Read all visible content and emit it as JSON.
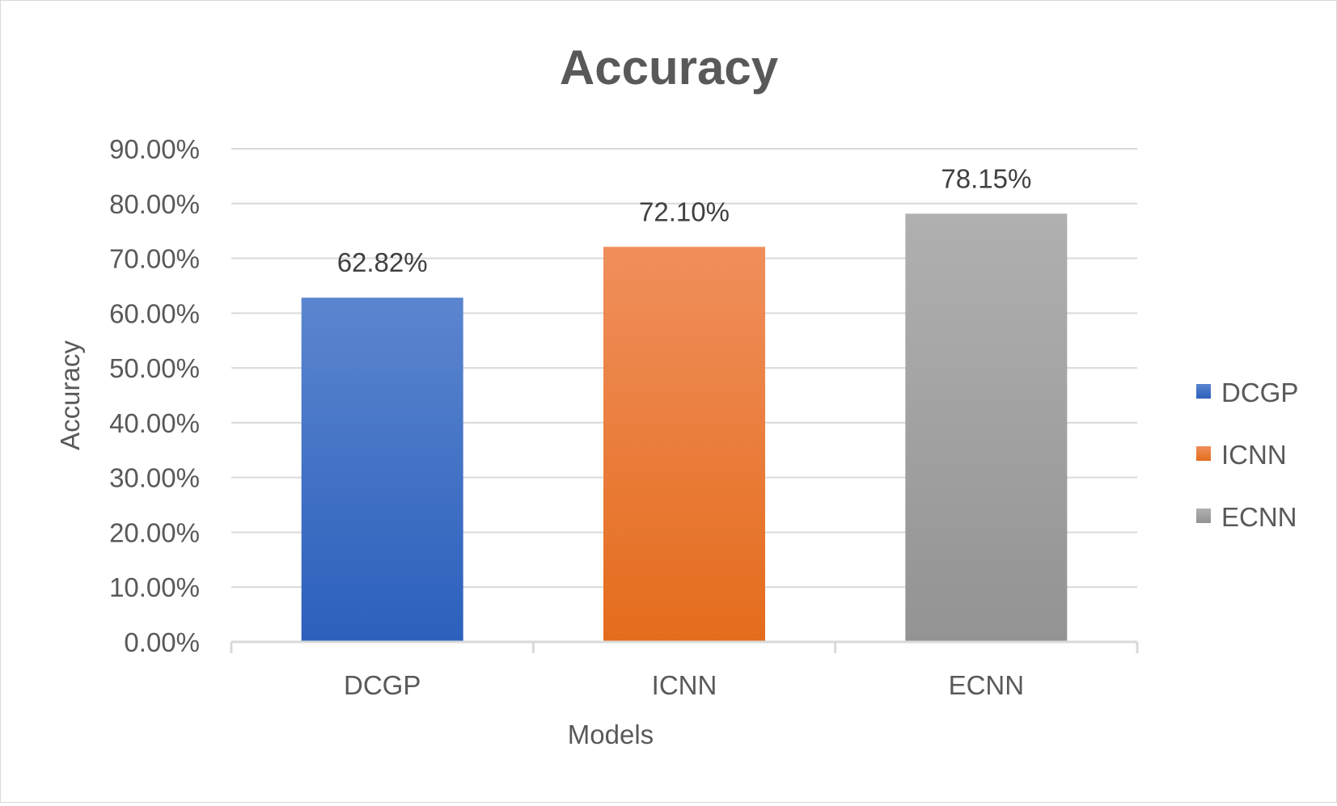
{
  "chart_data": {
    "type": "bar",
    "title": "Accuracy",
    "xlabel": "Models",
    "ylabel": "Accuracy",
    "categories": [
      "DCGP",
      "ICNN",
      "ECNN"
    ],
    "values": [
      62.82,
      72.1,
      78.15
    ],
    "value_labels": [
      "62.82%",
      "72.10%",
      "78.15%"
    ],
    "ylim": [
      0,
      90
    ],
    "ytick_labels": [
      "0.00%",
      "10.00%",
      "20.00%",
      "30.00%",
      "40.00%",
      "50.00%",
      "60.00%",
      "70.00%",
      "80.00%",
      "90.00%"
    ],
    "grid": true,
    "legend": {
      "placement": "right",
      "entries": [
        "DCGP",
        "ICNN",
        "ECNN"
      ]
    },
    "colors": {
      "DCGP": [
        "#5b85cf",
        "#2c60bc"
      ],
      "ICNN": [
        "#f08f5c",
        "#e46c1c"
      ],
      "ECNN": [
        "#b0b0b0",
        "#939393"
      ],
      "gridline": "#d9d9d9"
    }
  }
}
